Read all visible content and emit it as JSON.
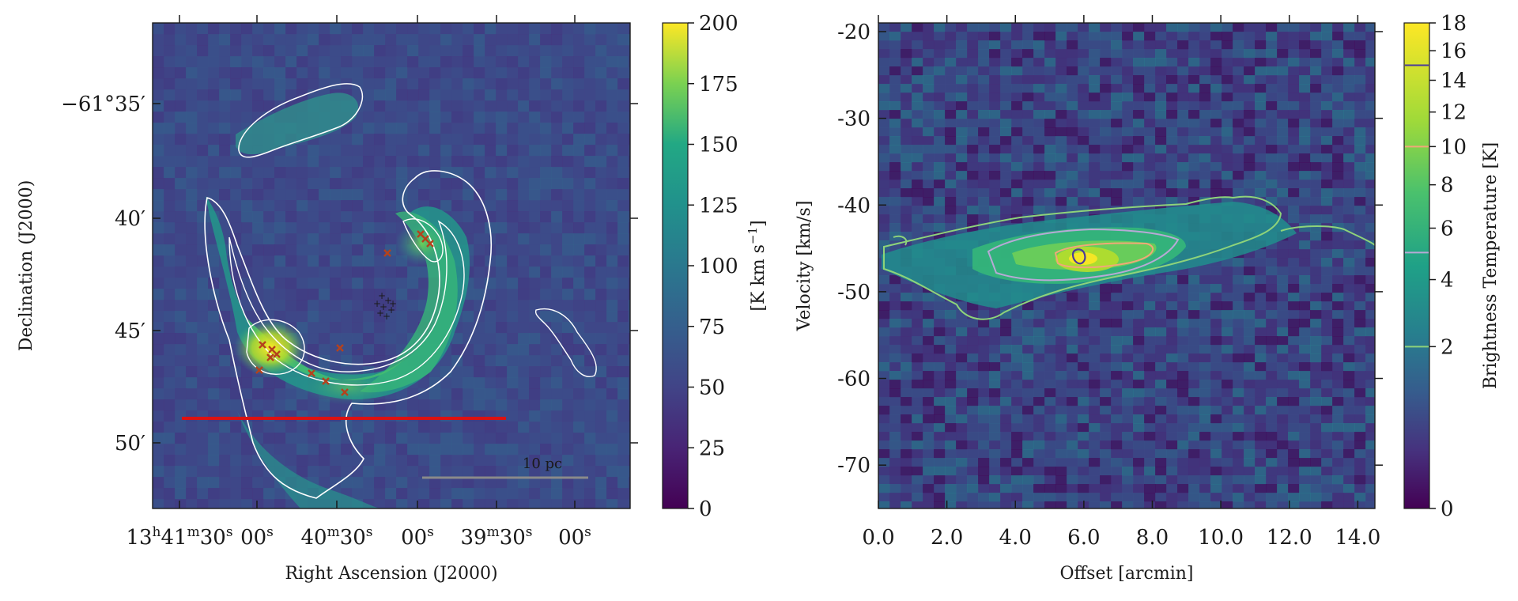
{
  "chart_data": [
    {
      "type": "heatmap",
      "description_role": "integrated intensity map",
      "xlabel": "Right Ascension (J2000)",
      "ylabel": "Declination (J2000)",
      "xticks": [
        {
          "main": "13",
          "sup1": "h",
          "mid": "41",
          "sup2": "m",
          "tail": "30",
          "sup3": "s"
        },
        {
          "main": "00",
          "sup1": "s"
        },
        {
          "main": "40",
          "sup1": "m",
          "tail": "30",
          "sup2": "s"
        },
        {
          "main": "00",
          "sup1": "s"
        },
        {
          "main": "39",
          "sup1": "m",
          "tail": "30",
          "sup2": "s"
        },
        {
          "main": "00",
          "sup1": "s"
        }
      ],
      "yticks": [
        "−61°35′",
        "40′",
        "45′",
        "50′"
      ],
      "colorbar": {
        "label": "[K km s⁻¹]",
        "label_main": "[K km s",
        "label_sup": "−1",
        "label_end": "]",
        "range": [
          0,
          200
        ],
        "ticks": [
          "0",
          "25",
          "50",
          "75",
          "100",
          "125",
          "150",
          "175",
          "200"
        ],
        "colormap": "viridis"
      },
      "scalebar_label": "10 pc",
      "colors": {
        "contour": "#ffffff",
        "cut_line": "#dd1111",
        "markers": "#b5421c",
        "scalebar": "#8a8a8a"
      }
    },
    {
      "type": "heatmap",
      "description_role": "position-velocity diagram",
      "xlabel": "Offset [arcmin]",
      "ylabel": "Velocity [km/s]",
      "xlim": [
        0,
        14.5
      ],
      "ylim": [
        -75,
        -19
      ],
      "xticks": [
        "0.0",
        "2.0",
        "4.0",
        "6.0",
        "8.0",
        "10.0",
        "12.0",
        "14.0"
      ],
      "yticks": [
        "-20",
        "-30",
        "-40",
        "-50",
        "-60",
        "-70"
      ],
      "colorbar": {
        "label": "Brightness Temperature [K]",
        "range": [
          0,
          18
        ],
        "scale": "sqrt",
        "ticks": [
          "0",
          "2",
          "4",
          "6",
          "8",
          "10",
          "12",
          "14",
          "16",
          "18"
        ],
        "contour_levels": [
          2,
          5,
          10,
          15
        ],
        "colormap": "viridis"
      },
      "colors": {
        "contour_2": "#8ed37a",
        "contour_5": "#b7a9d6",
        "contour_10": "#f0a878",
        "contour_15": "#4a3b9a"
      }
    }
  ]
}
